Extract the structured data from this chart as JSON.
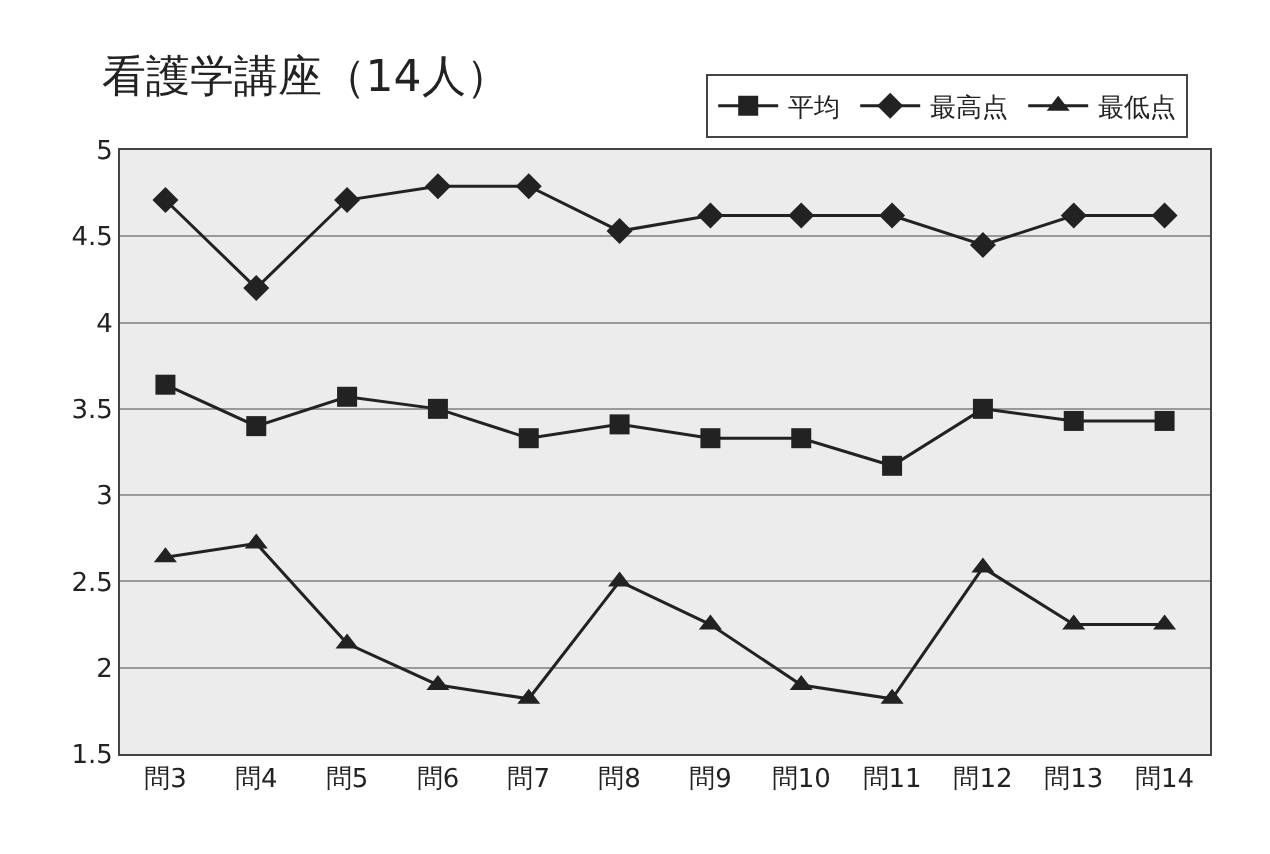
{
  "chart_data": {
    "type": "line",
    "title": "看護学講座（14人）",
    "categories": [
      "問3",
      "問4",
      "問5",
      "問6",
      "問7",
      "問8",
      "問9",
      "問10",
      "問11",
      "問12",
      "問13",
      "問14"
    ],
    "series": [
      {
        "name": "平均",
        "color": "#222222",
        "marker": "square",
        "values": [
          3.64,
          3.4,
          3.57,
          3.5,
          3.33,
          3.41,
          3.33,
          3.33,
          3.17,
          3.5,
          3.43,
          3.43
        ]
      },
      {
        "name": "最高点",
        "color": "#222222",
        "marker": "diamond",
        "values": [
          4.71,
          4.2,
          4.71,
          4.79,
          4.79,
          4.53,
          4.62,
          4.62,
          4.62,
          4.45,
          4.62,
          4.62
        ]
      },
      {
        "name": "最低点",
        "color": "#222222",
        "marker": "triangle",
        "values": [
          2.64,
          2.72,
          2.14,
          1.9,
          1.82,
          2.5,
          2.25,
          1.9,
          1.82,
          2.58,
          2.25,
          2.25
        ]
      }
    ],
    "ylim": [
      1.5,
      5
    ],
    "yticks": [
      1.5,
      2,
      2.5,
      3,
      3.5,
      4,
      4.5,
      5
    ],
    "grid": "y",
    "legend": "top right"
  }
}
